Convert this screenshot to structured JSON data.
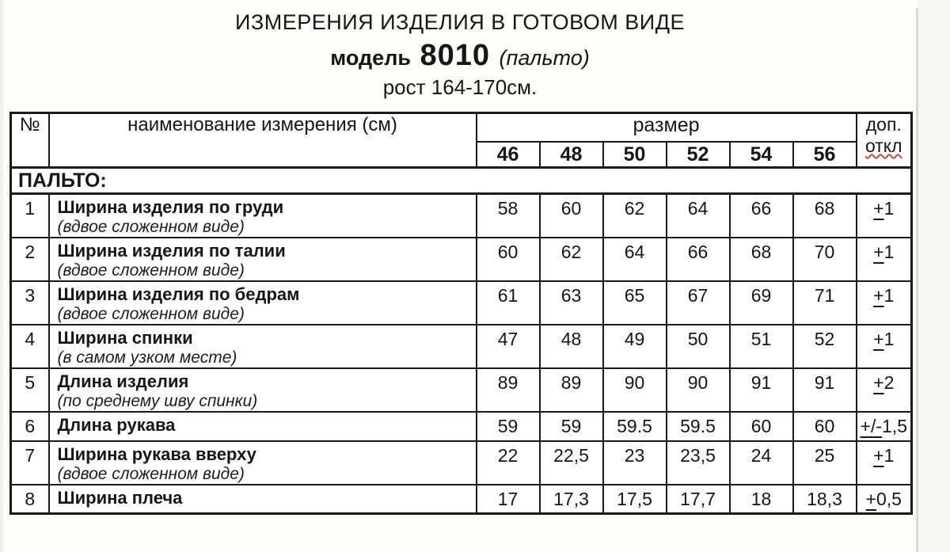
{
  "page": {
    "title": "ИЗМЕРЕНИЯ ИЗДЕЛИЯ В ГОТОВОМ ВИДЕ",
    "model_label": "модель",
    "model_number": "8010",
    "model_type": "(пальто)",
    "height_line": "рост 164-170см."
  },
  "table": {
    "header": {
      "num": "№",
      "name": "наименование измерения (см)",
      "size_group": "размер",
      "sizes": [
        "46",
        "48",
        "50",
        "52",
        "54",
        "56"
      ],
      "tol_line1": "доп.",
      "tol_line2": "откл"
    },
    "section": "ПАЛЬТО:",
    "rows": [
      {
        "num": "1",
        "name": "Ширина изделия по груди",
        "note": "(вдвое сложенном виде)",
        "values": [
          "58",
          "60",
          "62",
          "64",
          "66",
          "68"
        ],
        "tol": {
          "p": "+",
          "v": "1"
        }
      },
      {
        "num": "2",
        "name": "Ширина изделия по талии",
        "note": "(вдвое сложенном виде)",
        "values": [
          "60",
          "62",
          "64",
          "66",
          "68",
          "70"
        ],
        "tol": {
          "p": "+",
          "v": "1"
        }
      },
      {
        "num": "3",
        "name": "Ширина изделия по бедрам",
        "note": "(вдвое сложенном виде)",
        "values": [
          "61",
          "63",
          "65",
          "67",
          "69",
          "71"
        ],
        "tol": {
          "p": "+",
          "v": "1"
        }
      },
      {
        "num": "4",
        "name": "Ширина спинки",
        "note": "(в самом узком месте)",
        "values": [
          "47",
          "48",
          "49",
          "50",
          "51",
          "52"
        ],
        "tol": {
          "p": "+",
          "v": "1"
        }
      },
      {
        "num": "5",
        "name": "Длина изделия",
        "note": "(по среднему шву спинки)",
        "values": [
          "89",
          "89",
          "90",
          "90",
          "91",
          "91"
        ],
        "tol": {
          "p": "+",
          "v": "2"
        }
      },
      {
        "num": "6",
        "name": "Длина рукава",
        "note": "",
        "values": [
          "59",
          "59",
          "59.5",
          "59.5",
          "60",
          "60"
        ],
        "tol": {
          "p": "+/-",
          "v": "1,5"
        }
      },
      {
        "num": "7",
        "name": "Ширина рукава вверху",
        "note": "(вдвое сложенном виде)",
        "values": [
          "22",
          "22,5",
          "23",
          "23,5",
          "24",
          "25"
        ],
        "tol": {
          "p": "+",
          "v": "1"
        }
      },
      {
        "num": "8",
        "name": "Ширина плеча",
        "note": "",
        "values": [
          "17",
          "17,3",
          "17,5",
          "17,7",
          "18",
          "18,3"
        ],
        "tol": {
          "p": "+",
          "v": "0,5"
        }
      }
    ]
  },
  "colors": {
    "text": "#161616",
    "grid_line": "#1a1a1a",
    "spellcheck_squiggle": "#c84840",
    "page_edge": "#d8d8d4"
  }
}
